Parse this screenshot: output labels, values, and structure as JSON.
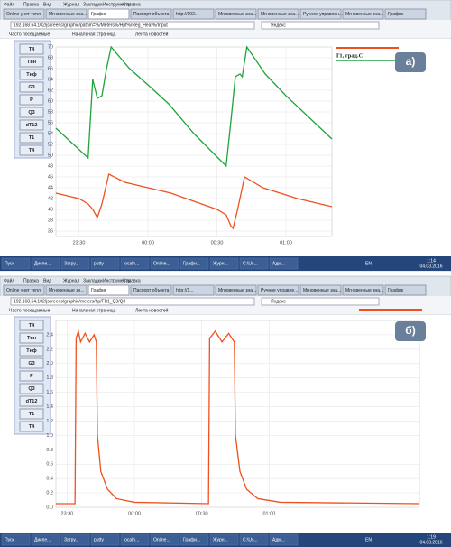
{
  "panels": [
    {
      "menu": [
        "Файл",
        "Правка",
        "Вид",
        "Журнал",
        "Закладки",
        "Инструменты",
        "Справка"
      ],
      "tabs": [
        "Online учет тепл",
        "Мгновенные зна...",
        "График",
        "Паспорт объекта",
        "http://192...",
        "Мгновенные зна...",
        "Мгновенные зна...",
        "Ручное управлен...",
        "Мгновенные зна...",
        "График"
      ],
      "active_tab": 2,
      "address": "192.168.64.102/jscreens/graphic/pathm=%/Meters%/Hpf%/Reg_Heat%/Input",
      "search": "Яндекс",
      "bookmarks": [
        "Часто посещаемые",
        "Начальная страница",
        "Лента новостей"
      ],
      "sidebar": [
        "T4",
        "Tвн",
        "Tнф",
        "G3",
        "P",
        "Q3",
        "dT12",
        "T1",
        "T4"
      ],
      "panel_label": "а)",
      "legend": "T1, град.С",
      "chart": {
        "type": "line",
        "xlim": [
          20,
          140
        ],
        "xticks": [
          {
            "value": 30,
            "label": "23:30"
          },
          {
            "value": 60,
            "label": "00:00"
          },
          {
            "value": 90,
            "label": "00:30"
          },
          {
            "value": 120,
            "label": "01:00"
          }
        ],
        "ylim": [
          35,
          70
        ],
        "yticks": [
          36,
          38,
          40,
          42,
          44,
          46,
          48,
          50,
          52,
          54,
          56,
          58,
          60,
          62,
          64,
          66,
          68,
          70
        ],
        "grid": true,
        "series": [
          {
            "color": "#1fa33c",
            "x": [
              20,
              34,
              36,
              38,
              40,
              42,
              44,
              52,
              60,
              69,
              80,
              94,
              96,
              98,
              100,
              101,
              103,
              111,
              120,
              130,
              140
            ],
            "values": [
              55,
              49.5,
              64,
              60.5,
              61,
              66,
              70,
              66,
              63,
              59.5,
              54,
              48,
              56,
              64.5,
              65,
              64.5,
              70,
              65,
              61,
              57,
              53
            ]
          },
          {
            "color": "#f0501e",
            "x": [
              20,
              30,
              34,
              36,
              38,
              40,
              43,
              50,
              70,
              90,
              94,
              96,
              97,
              99,
              102,
              110,
              125,
              140
            ],
            "values": [
              43,
              42,
              41,
              40,
              38.5,
              41,
              46.5,
              45,
              43,
              40,
              39,
              37,
              36.5,
              40,
              46,
              44,
              42,
              40.5
            ]
          }
        ]
      },
      "taskbar": [
        "Пуск",
        "Диспе...",
        "Загру...",
        "putty",
        "localh...",
        "Online...",
        "Графи...",
        "Журн...",
        "C:\\Us...",
        "Адм..."
      ],
      "lang": "EN",
      "clock": "1:14",
      "date": "04.03.2016"
    },
    {
      "menu": [
        "Файл",
        "Правка",
        "Вид",
        "Журнал",
        "Закладки",
        "Инструменты",
        "Справка"
      ],
      "tabs": [
        "Online учет тепл",
        "Мгновенные зн...",
        "График",
        "Паспорт объекта",
        "http://1...",
        "Мгновенные зна...",
        "Ручное управле...",
        "Мгновенные зна...",
        "Мгновенные зна...",
        "График"
      ],
      "active_tab": 2,
      "address": "192.168.64.102/jscreens/graphic/meters/hp/FB1_Q3/Q3",
      "search": "Яндекс",
      "bookmarks": [
        "Часто посещаемые",
        "Начальная страница",
        "Лента новостей"
      ],
      "sidebar": [
        "T4",
        "Tвн",
        "Tнф",
        "G3",
        "P",
        "Q3",
        "dT12",
        "T1",
        "T4"
      ],
      "panel_label": "б)",
      "chart": {
        "type": "line",
        "xlim": [
          25,
          187
        ],
        "xticks": [
          {
            "value": 30,
            "label": "23:30"
          },
          {
            "value": 60,
            "label": "00:00"
          },
          {
            "value": 90,
            "label": "00:30"
          },
          {
            "value": 120,
            "label": "01:00"
          }
        ],
        "ylim": [
          0,
          2.6
        ],
        "yticks": [
          {
            "value": 0,
            "label": "0.0"
          },
          0.2,
          0.4,
          0.6,
          0.8,
          {
            "value": 1,
            "label": "1.0"
          },
          1.2,
          1.4,
          1.6,
          1.8,
          {
            "value": 2,
            "label": "2.0"
          },
          2.2,
          2.4
        ],
        "grid": true,
        "series": [
          {
            "color": "#f0501e",
            "x": [
              25,
              33.5,
              34,
              35,
              36,
              38,
              40,
              42,
              43,
              43.5,
              45,
              48,
              52,
              60,
              93,
              93.5,
              96,
              99,
              102,
              104.5,
              105,
              107,
              110,
              115,
              125,
              187
            ],
            "values": [
              0.05,
              0.05,
              2.35,
              2.45,
              2.3,
              2.42,
              2.3,
              2.4,
              2.3,
              1.0,
              0.5,
              0.25,
              0.12,
              0.07,
              0.05,
              2.35,
              2.45,
              2.3,
              2.42,
              2.3,
              1.0,
              0.5,
              0.25,
              0.12,
              0.07,
              0.05
            ]
          }
        ]
      },
      "taskbar": [
        "Пуск",
        "Диспе...",
        "Загру...",
        "putty",
        "localh...",
        "Online...",
        "Графи...",
        "Журн...",
        "C:\\Us...",
        "Адм..."
      ],
      "lang": "EN",
      "clock": "1:19",
      "date": "04.03.2016"
    }
  ]
}
